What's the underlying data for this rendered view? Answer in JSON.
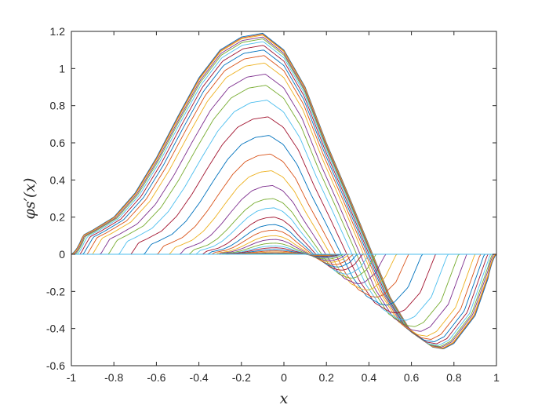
{
  "chart_data": {
    "type": "line",
    "title": "",
    "xlabel": "x",
    "ylabel": "φs′(x)",
    "xlim": [
      -1,
      1
    ],
    "ylim": [
      -0.6,
      1.2
    ],
    "grid": false,
    "legend": "none",
    "x_ticks": [
      "-1",
      "-0.8",
      "-0.6",
      "-0.4",
      "-0.2",
      "0",
      "0.2",
      "0.4",
      "0.6",
      "0.8",
      "1"
    ],
    "y_ticks": [
      "-0.6",
      "-0.4",
      "-0.2",
      "0",
      "0.2",
      "0.4",
      "0.6",
      "0.8",
      "1",
      "1.2"
    ],
    "x_samples": [
      -1,
      -0.95,
      -0.9,
      -0.8,
      -0.7,
      -0.6,
      -0.5,
      -0.4,
      -0.3,
      -0.2,
      -0.1,
      0,
      0.1,
      0.2,
      0.3,
      0.4,
      0.5,
      0.6,
      0.7,
      0.75,
      0.8,
      0.9,
      1
    ],
    "envelope_curve": [
      0,
      0.1,
      0.13,
      0.2,
      0.33,
      0.52,
      0.74,
      0.95,
      1.1,
      1.17,
      1.19,
      1.1,
      0.9,
      0.6,
      0.33,
      0.05,
      -0.23,
      -0.42,
      -0.5,
      -0.51,
      -0.48,
      -0.33,
      0
    ],
    "peak_amplitudes": [
      1.19,
      1.185,
      1.18,
      1.17,
      1.16,
      1.145,
      1.125,
      1.1,
      1.07,
      1.03,
      0.97,
      0.91,
      0.83,
      0.74,
      0.64,
      0.54,
      0.45,
      0.37,
      0.3,
      0.25,
      0.2,
      0.16,
      0.13,
      0.1,
      0.08,
      0.06,
      0.045,
      0.035,
      0.025,
      0.018,
      0.012,
      0.007,
      0.003,
      0
    ],
    "series_colors": [
      "#0072BD",
      "#D95319",
      "#EDB120",
      "#7E2F8E",
      "#77AC30",
      "#4DBEEE",
      "#A2142F"
    ]
  }
}
